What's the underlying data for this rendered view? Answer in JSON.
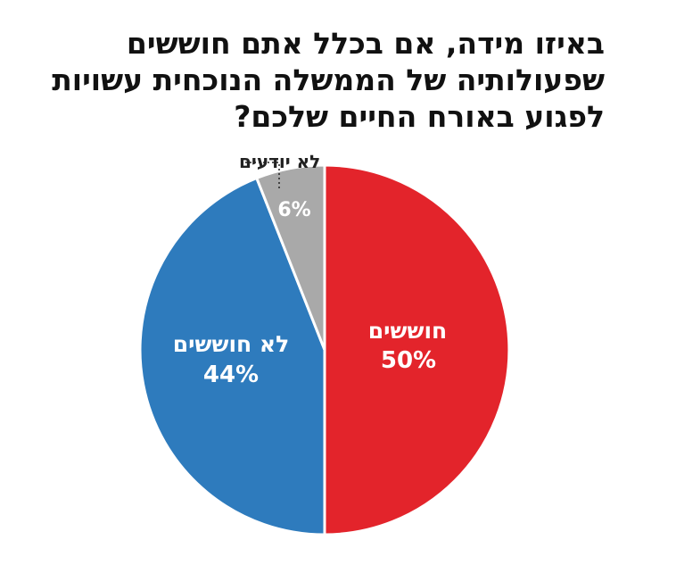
{
  "chart_data": {
    "type": "pie",
    "title_lines": [
      "באיזו מידה, אם בכלל אתם חוששים",
      "שפעולותיה של הממשלה הנוכחית עשויות",
      "לפגוע באורח החיים שלכם?"
    ],
    "slices": [
      {
        "label": "חוששים",
        "value": 50,
        "value_label": "50%",
        "color": "#e3242b"
      },
      {
        "label": "לא חוששים",
        "value": 44,
        "value_label": "44%",
        "color": "#2e7bbd"
      },
      {
        "label": "לא יודעים",
        "value": 6,
        "value_label": "6%",
        "color": "#a9a9a9"
      }
    ],
    "start": "12 o'clock",
    "direction": "clockwise"
  }
}
